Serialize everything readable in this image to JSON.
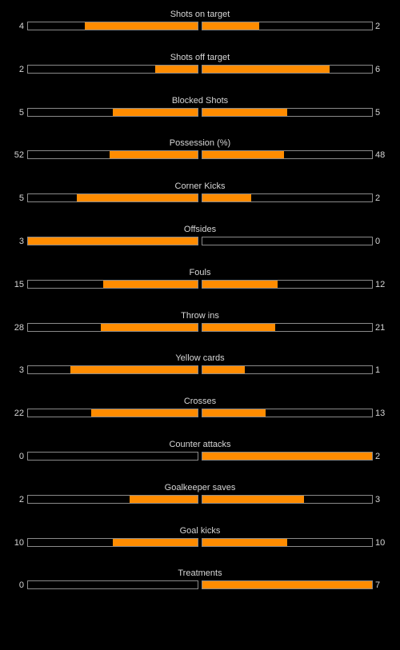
{
  "colors": {
    "background": "#000000",
    "bar_fill": "#ff8c00",
    "bar_border": "#8a8a8a",
    "text": "#d6d6d6"
  },
  "stats": [
    {
      "label": "Shots on target",
      "home": "4",
      "away": "2",
      "home_fraction": 0.667,
      "away_fraction": 0.333
    },
    {
      "label": "Shots off target",
      "home": "2",
      "away": "6",
      "home_fraction": 0.25,
      "away_fraction": 0.75
    },
    {
      "label": "Blocked Shots",
      "home": "5",
      "away": "5",
      "home_fraction": 0.5,
      "away_fraction": 0.5
    },
    {
      "label": "Possession (%)",
      "home": "52",
      "away": "48",
      "home_fraction": 0.52,
      "away_fraction": 0.48
    },
    {
      "label": "Corner Kicks",
      "home": "5",
      "away": "2",
      "home_fraction": 0.714,
      "away_fraction": 0.286
    },
    {
      "label": "Offsides",
      "home": "3",
      "away": "0",
      "home_fraction": 1.0,
      "away_fraction": 0.0
    },
    {
      "label": "Fouls",
      "home": "15",
      "away": "12",
      "home_fraction": 0.556,
      "away_fraction": 0.444
    },
    {
      "label": "Throw ins",
      "home": "28",
      "away": "21",
      "home_fraction": 0.571,
      "away_fraction": 0.429
    },
    {
      "label": "Yellow cards",
      "home": "3",
      "away": "1",
      "home_fraction": 0.75,
      "away_fraction": 0.25
    },
    {
      "label": "Crosses",
      "home": "22",
      "away": "13",
      "home_fraction": 0.629,
      "away_fraction": 0.371
    },
    {
      "label": "Counter attacks",
      "home": "0",
      "away": "2",
      "home_fraction": 0.0,
      "away_fraction": 1.0
    },
    {
      "label": "Goalkeeper saves",
      "home": "2",
      "away": "3",
      "home_fraction": 0.4,
      "away_fraction": 0.6
    },
    {
      "label": "Goal kicks",
      "home": "10",
      "away": "10",
      "home_fraction": 0.5,
      "away_fraction": 0.5
    },
    {
      "label": "Treatments",
      "home": "0",
      "away": "7",
      "home_fraction": 0.0,
      "away_fraction": 1.0
    }
  ]
}
